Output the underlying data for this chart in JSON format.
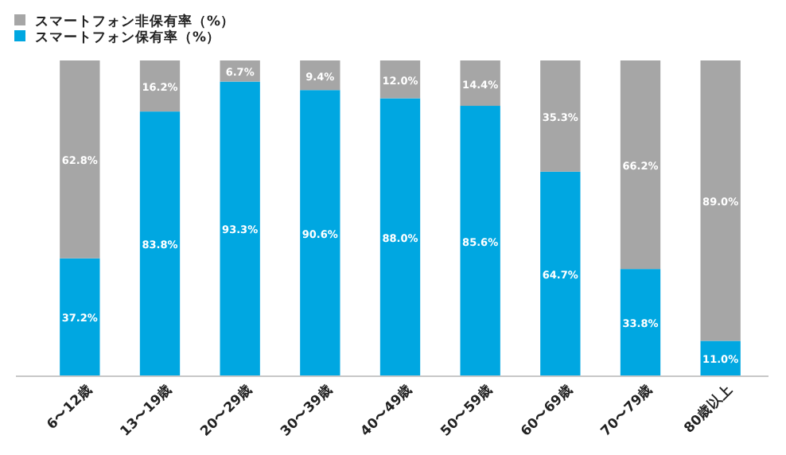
{
  "chart_data": {
    "type": "bar",
    "stacked": true,
    "legend": "top left",
    "categories": [
      "6〜12歳",
      "13〜19歳",
      "20〜29歳",
      "30〜39歳",
      "40〜49歳",
      "50〜59歳",
      "60〜69歳",
      "70〜79歳",
      "80歳以上"
    ],
    "series": [
      {
        "name": "スマートフォン保有率（%）",
        "color": "#00a7e1",
        "values": [
          37.2,
          83.8,
          93.3,
          90.6,
          88.0,
          85.6,
          64.7,
          33.8,
          11.0
        ],
        "value_labels": [
          "37.2%",
          "83.8%",
          "93.3%",
          "90.6%",
          "88.0%",
          "85.6%",
          "64.7%",
          "33.8%",
          "11.0%"
        ]
      },
      {
        "name": "スマートフォン非保有率（%）",
        "color": "#a6a6a6",
        "values": [
          62.8,
          16.2,
          6.7,
          9.4,
          12.0,
          14.4,
          35.3,
          66.2,
          89.0
        ],
        "value_labels": [
          "62.8%",
          "16.2%",
          "6.7%",
          "9.4%",
          "12.0%",
          "14.4%",
          "35.3%",
          "66.2%",
          "89.0%"
        ]
      }
    ]
  }
}
